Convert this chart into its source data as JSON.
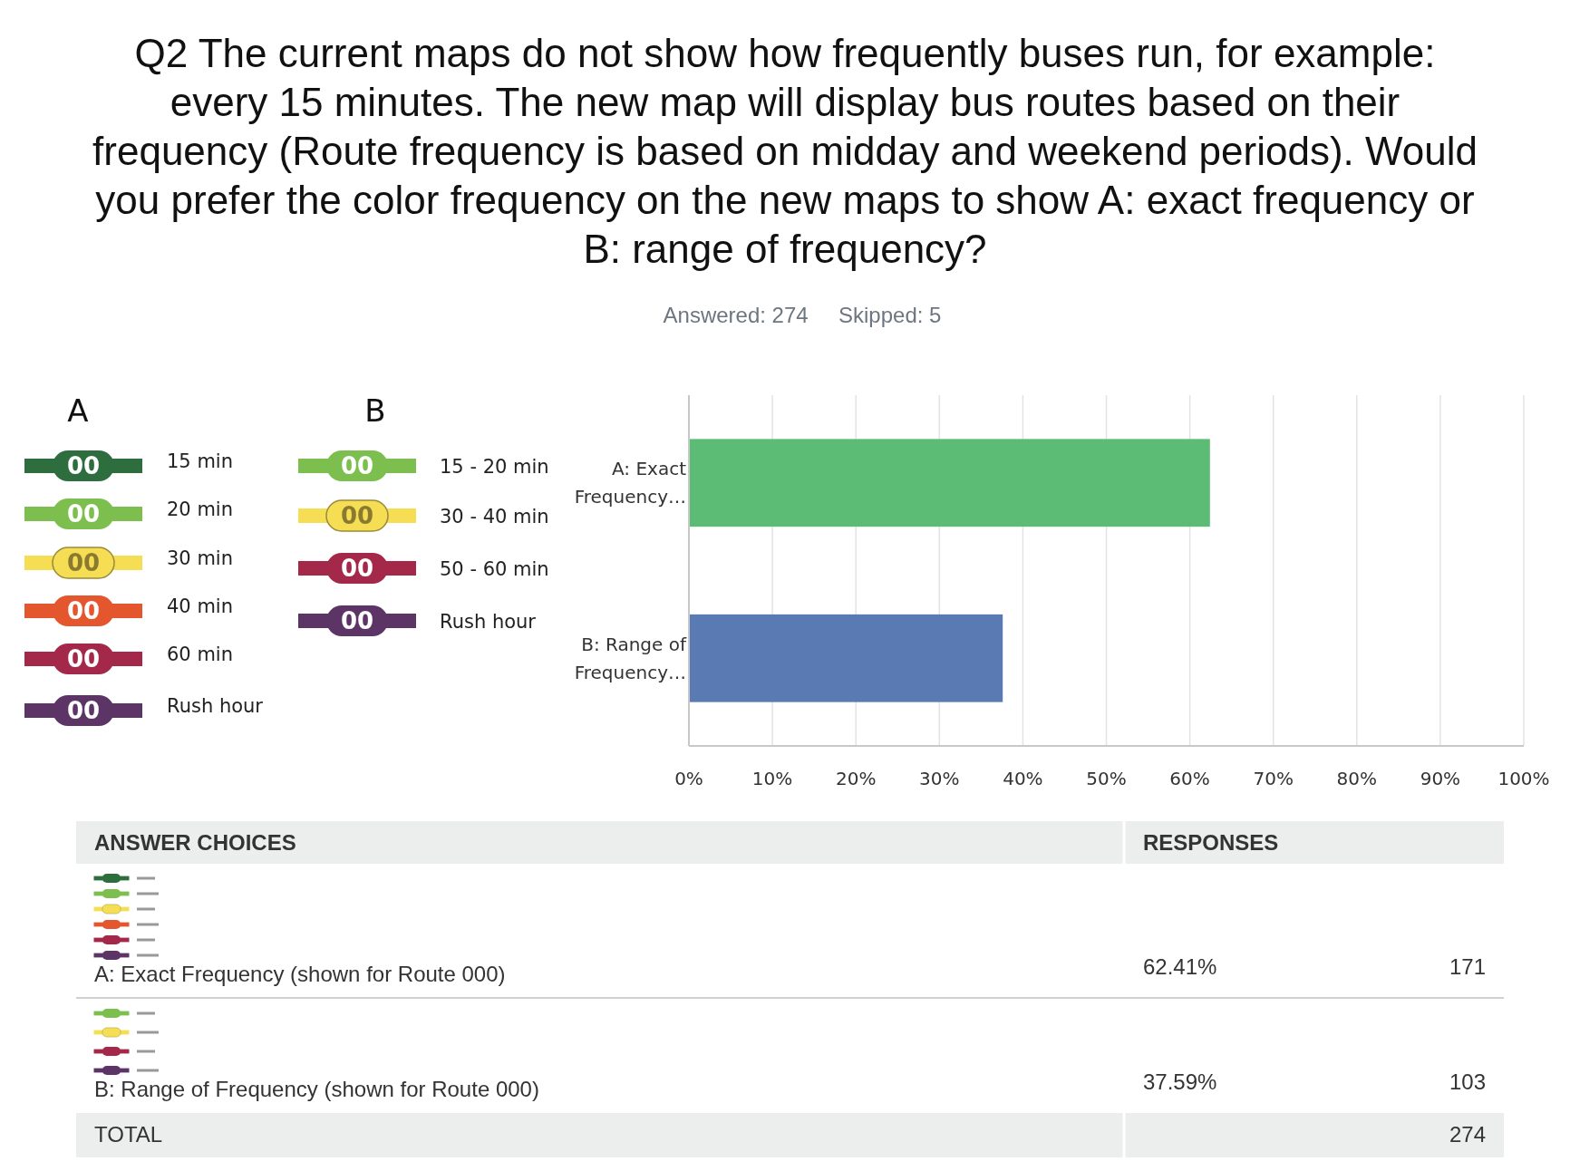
{
  "chart_data": {
    "type": "bar",
    "orientation": "horizontal",
    "title": "Q2 The current maps do not show how frequently buses run, for example: every 15 minutes. The new map will display bus routes based on their frequency (Route frequency is based on midday and weekend periods). Would you prefer the color frequency on the new maps to show A: exact frequency or B: range of frequency?",
    "subtitle": "Answered: 274     Skipped: 5",
    "categories": [
      "A: Exact Frequency…",
      "B: Range of Frequency…"
    ],
    "values": [
      62.41,
      37.59
    ],
    "colors": [
      "#5cbb74",
      "#5a7ab4"
    ],
    "xlim": [
      0,
      100
    ],
    "xticks": [
      {
        "value": 0,
        "label": "0%"
      },
      {
        "value": 10,
        "label": "10%"
      },
      {
        "value": 20,
        "label": "20%"
      },
      {
        "value": 30,
        "label": "30%"
      },
      {
        "value": 40,
        "label": "40%"
      },
      {
        "value": 50,
        "label": "50%"
      },
      {
        "value": 60,
        "label": "60%"
      },
      {
        "value": 70,
        "label": "70%"
      },
      {
        "value": 80,
        "label": "80%"
      },
      {
        "value": 90,
        "label": "90%"
      },
      {
        "value": 100,
        "label": "100%"
      }
    ],
    "grid": "x",
    "annotations": [
      "00",
      "A",
      "15 min",
      "20 min",
      "30 min",
      "40 min",
      "60 min",
      "Rush hour",
      "B",
      "15 - 20 min",
      "30 - 40 min",
      "50 - 60 min",
      "Rush hour",
      "ANSWER CHOICES",
      "RESPONSES",
      "A: Exact Frequency (shown for Route 000)",
      "171",
      "B: Range of Frequency (shown for Route 000)",
      "103",
      "62.41%",
      "37.59%",
      "TOTAL",
      "274"
    ]
  }
}
